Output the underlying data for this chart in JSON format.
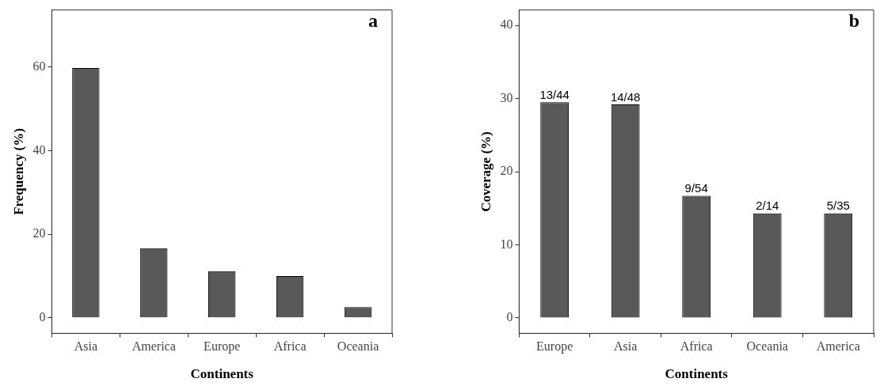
{
  "chart_data": [
    {
      "type": "bar",
      "xlabel": "Continents",
      "ylabel": "Frequency (%)",
      "categories": [
        "Asia",
        "America",
        "Europe",
        "Africa",
        "Oceania"
      ],
      "values": [
        59.8,
        16.7,
        11.2,
        10,
        2.6
      ],
      "color": "#595959",
      "ylim": [
        -3.7,
        73.7
      ],
      "yticks": [
        0,
        20,
        40,
        60
      ],
      "grid": false,
      "legend": false,
      "annotations": [
        "a"
      ]
    },
    {
      "type": "bar",
      "xlabel": "Continents",
      "ylabel": "Coverage (%)",
      "categories": [
        "Europe",
        "Asia",
        "Africa",
        "Oceania",
        "America"
      ],
      "values": [
        29.5,
        29.2,
        16.7,
        14.3,
        14.3
      ],
      "value_labels": [
        "13/44",
        "14/48",
        "9/54",
        "2/14",
        "5/35"
      ],
      "color": "#595959",
      "ylim": [
        -2.1,
        42.1
      ],
      "yticks": [
        0,
        10,
        20,
        30,
        40
      ],
      "grid": false,
      "legend": false,
      "annotations": [
        "b"
      ]
    }
  ]
}
